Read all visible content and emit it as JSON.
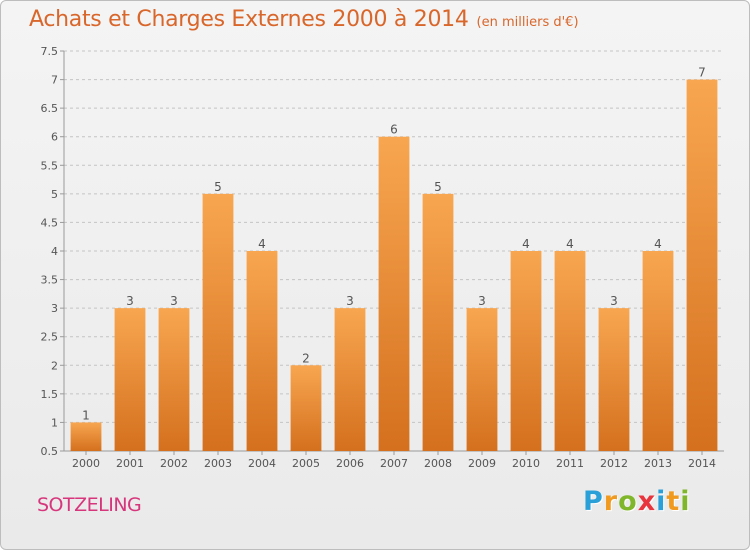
{
  "header": {
    "title": "Achats et Charges Externes 2000 à 2014",
    "unit": "(en milliers d'€)"
  },
  "footer": {
    "city": "SOTZELING",
    "logo": {
      "letters": [
        "P",
        "r",
        "o",
        "x",
        "i",
        "t",
        "i"
      ],
      "colors": [
        "#2aa0d8",
        "#f09a1f",
        "#7fb62a",
        "#e8343c",
        "#2aa0d8",
        "#f09a1f",
        "#7fb62a"
      ]
    }
  },
  "colors": {
    "bar_top": "#f8a650",
    "bar_bottom": "#d4701e",
    "axis": "#9a9a9a",
    "grid": "#c4c4c4",
    "text": "#555555"
  },
  "chart_data": {
    "type": "bar",
    "title": "Achats et Charges Externes 2000 à 2014",
    "subtitle": "(en milliers d'€)",
    "xlabel": "",
    "ylabel": "",
    "categories": [
      "2000",
      "2001",
      "2002",
      "2003",
      "2004",
      "2005",
      "2006",
      "2007",
      "2008",
      "2009",
      "2010",
      "2011",
      "2012",
      "2013",
      "2014"
    ],
    "values": [
      1,
      3,
      3,
      5,
      4,
      2,
      3,
      6,
      5,
      3,
      4,
      4,
      3,
      4,
      7
    ],
    "ylim": [
      0.5,
      7.5
    ],
    "yticks": [
      "0.5",
      "1",
      "1.5",
      "2",
      "2.5",
      "3",
      "3.5",
      "4",
      "4.5",
      "5",
      "5.5",
      "6",
      "6.5",
      "7",
      "7.5"
    ],
    "grid": true,
    "legend": "none"
  }
}
